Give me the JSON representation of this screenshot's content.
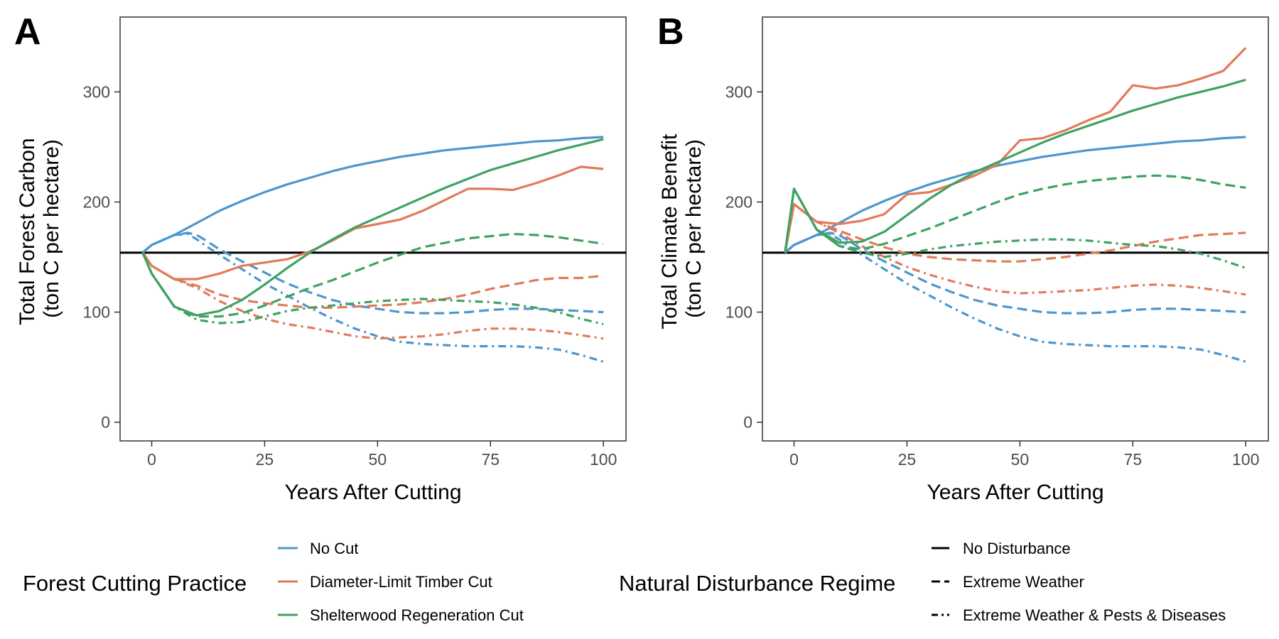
{
  "chart_data": [
    {
      "type": "line",
      "panel_label": "A",
      "xlabel": "Years After Cutting",
      "ylabel": [
        "Total Forest Carbon",
        "(ton C per hectare)"
      ],
      "xlim": [
        -7,
        105
      ],
      "ylim": [
        -17,
        368
      ],
      "xticks": [
        0,
        25,
        50,
        75,
        100
      ],
      "yticks": [
        0,
        100,
        200,
        300
      ],
      "grid": false,
      "reference_line": 154,
      "series": [
        {
          "practice": "No Cut",
          "regime": "No Disturbance",
          "color": "#4e96cd",
          "x": [
            -2,
            0,
            5,
            10,
            15,
            20,
            25,
            30,
            35,
            40,
            45,
            50,
            55,
            60,
            65,
            70,
            75,
            80,
            85,
            90,
            95,
            100
          ],
          "y": [
            154,
            161,
            170,
            181,
            192,
            201,
            209,
            216,
            222,
            228,
            233,
            237,
            241,
            244,
            247,
            249,
            251,
            253,
            255,
            256,
            258,
            259
          ]
        },
        {
          "practice": "No Cut",
          "regime": "Extreme Weather",
          "color": "#4e96cd",
          "x": [
            -2,
            0,
            5,
            8,
            10,
            12,
            15,
            20,
            25,
            30,
            35,
            40,
            45,
            50,
            55,
            60,
            65,
            70,
            75,
            80,
            85,
            90,
            95,
            100
          ],
          "y": [
            154,
            161,
            170,
            172,
            170,
            165,
            157,
            146,
            136,
            126,
            118,
            111,
            106,
            103,
            100,
            99,
            99,
            100,
            102,
            103,
            103,
            102,
            101,
            100
          ]
        },
        {
          "practice": "No Cut",
          "regime": "Extreme Weather & Pests & Diseases",
          "color": "#4e96cd",
          "x": [
            -2,
            0,
            5,
            8,
            10,
            12,
            15,
            20,
            25,
            30,
            35,
            40,
            45,
            50,
            55,
            60,
            65,
            70,
            75,
            80,
            85,
            90,
            95,
            100
          ],
          "y": [
            154,
            161,
            170,
            171,
            166,
            160,
            152,
            139,
            126,
            115,
            104,
            94,
            85,
            78,
            73,
            71,
            70,
            69,
            69,
            69,
            68,
            66,
            61,
            55
          ]
        },
        {
          "practice": "Diameter-Limit Timber Cut",
          "regime": "No Disturbance",
          "color": "#e07b5a",
          "x": [
            -2,
            0,
            5,
            10,
            15,
            20,
            25,
            30,
            35,
            40,
            45,
            50,
            55,
            60,
            65,
            70,
            75,
            80,
            85,
            90,
            95,
            100
          ],
          "y": [
            154,
            142,
            130,
            130,
            135,
            142,
            145,
            148,
            155,
            165,
            176,
            180,
            184,
            192,
            202,
            212,
            212,
            211,
            217,
            224,
            232,
            230
          ]
        },
        {
          "practice": "Diameter-Limit Timber Cut",
          "regime": "Extreme Weather",
          "color": "#e07b5a",
          "x": [
            -2,
            0,
            5,
            10,
            15,
            20,
            25,
            30,
            35,
            40,
            45,
            50,
            55,
            60,
            65,
            70,
            75,
            80,
            85,
            90,
            95,
            100
          ],
          "y": [
            154,
            142,
            130,
            124,
            116,
            111,
            108,
            106,
            104,
            104,
            105,
            106,
            107,
            109,
            112,
            116,
            121,
            125,
            129,
            131,
            131,
            133
          ]
        },
        {
          "practice": "Diameter-Limit Timber Cut",
          "regime": "Extreme Weather & Pests & Diseases",
          "color": "#e07b5a",
          "x": [
            -2,
            0,
            5,
            10,
            15,
            20,
            25,
            30,
            35,
            40,
            45,
            50,
            55,
            60,
            65,
            70,
            75,
            80,
            85,
            90,
            95,
            100
          ],
          "y": [
            154,
            142,
            130,
            122,
            110,
            101,
            94,
            89,
            86,
            82,
            78,
            76,
            77,
            78,
            80,
            83,
            85,
            85,
            84,
            82,
            79,
            76
          ]
        },
        {
          "practice": "Shelterwood Regeneration Cut",
          "regime": "No Disturbance",
          "color": "#3fa262",
          "x": [
            -2,
            0,
            5,
            10,
            15,
            20,
            25,
            30,
            35,
            40,
            45,
            50,
            55,
            60,
            65,
            70,
            75,
            80,
            85,
            90,
            95,
            100
          ],
          "y": [
            154,
            135,
            105,
            97,
            101,
            111,
            125,
            140,
            154,
            166,
            177,
            186,
            195,
            204,
            213,
            221,
            229,
            235,
            241,
            247,
            252,
            257
          ]
        },
        {
          "practice": "Shelterwood Regeneration Cut",
          "regime": "Extreme Weather",
          "color": "#3fa262",
          "x": [
            -2,
            0,
            5,
            10,
            15,
            20,
            25,
            30,
            35,
            40,
            45,
            50,
            55,
            60,
            65,
            70,
            75,
            80,
            85,
            90,
            95,
            100
          ],
          "y": [
            154,
            135,
            105,
            96,
            96,
            99,
            106,
            114,
            122,
            129,
            137,
            145,
            152,
            159,
            163,
            167,
            169,
            171,
            170,
            168,
            165,
            162
          ]
        },
        {
          "practice": "Shelterwood Regeneration Cut",
          "regime": "Extreme Weather & Pests & Diseases",
          "color": "#3fa262",
          "x": [
            -2,
            0,
            5,
            10,
            15,
            20,
            25,
            30,
            35,
            40,
            45,
            50,
            55,
            60,
            65,
            70,
            75,
            80,
            85,
            90,
            95,
            100
          ],
          "y": [
            154,
            135,
            105,
            93,
            90,
            91,
            96,
            101,
            104,
            106,
            108,
            110,
            111,
            112,
            111,
            110,
            109,
            107,
            104,
            100,
            94,
            89
          ]
        }
      ]
    },
    {
      "type": "line",
      "panel_label": "B",
      "xlabel": "Years After Cutting",
      "ylabel": [
        "Total Climate Benefit",
        "(ton C per hectare)"
      ],
      "xlim": [
        -7,
        105
      ],
      "ylim": [
        -17,
        368
      ],
      "xticks": [
        0,
        25,
        50,
        75,
        100
      ],
      "yticks": [
        0,
        100,
        200,
        300
      ],
      "grid": false,
      "reference_line": 154,
      "series": [
        {
          "practice": "No Cut",
          "regime": "No Disturbance",
          "color": "#4e96cd",
          "x": [
            -2,
            0,
            5,
            10,
            15,
            20,
            25,
            30,
            35,
            40,
            45,
            50,
            55,
            60,
            65,
            70,
            75,
            80,
            85,
            90,
            95,
            100
          ],
          "y": [
            154,
            161,
            170,
            181,
            192,
            201,
            209,
            216,
            222,
            228,
            233,
            237,
            241,
            244,
            247,
            249,
            251,
            253,
            255,
            256,
            258,
            259
          ]
        },
        {
          "practice": "No Cut",
          "regime": "Extreme Weather",
          "color": "#4e96cd",
          "x": [
            -2,
            0,
            5,
            8,
            10,
            12,
            15,
            20,
            25,
            30,
            35,
            40,
            45,
            50,
            55,
            60,
            65,
            70,
            75,
            80,
            85,
            90,
            95,
            100
          ],
          "y": [
            154,
            161,
            170,
            172,
            170,
            165,
            157,
            146,
            136,
            126,
            118,
            111,
            106,
            103,
            100,
            99,
            99,
            100,
            102,
            103,
            103,
            102,
            101,
            100
          ]
        },
        {
          "practice": "No Cut",
          "regime": "Extreme Weather & Pests & Diseases",
          "color": "#4e96cd",
          "x": [
            -2,
            0,
            5,
            8,
            10,
            12,
            15,
            20,
            25,
            30,
            35,
            40,
            45,
            50,
            55,
            60,
            65,
            70,
            75,
            80,
            85,
            90,
            95,
            100
          ],
          "y": [
            154,
            161,
            170,
            171,
            166,
            160,
            152,
            139,
            126,
            115,
            104,
            94,
            85,
            78,
            73,
            71,
            70,
            69,
            69,
            69,
            68,
            66,
            61,
            55
          ]
        },
        {
          "practice": "Diameter-Limit Timber Cut",
          "regime": "No Disturbance",
          "color": "#e07b5a",
          "x": [
            -2,
            0,
            5,
            10,
            15,
            20,
            25,
            30,
            35,
            40,
            45,
            50,
            55,
            60,
            65,
            70,
            75,
            80,
            85,
            90,
            95,
            100
          ],
          "y": [
            154,
            198,
            182,
            180,
            183,
            189,
            207,
            209,
            216,
            224,
            234,
            256,
            258,
            265,
            274,
            282,
            306,
            303,
            306,
            312,
            319,
            340
          ]
        },
        {
          "practice": "Diameter-Limit Timber Cut",
          "regime": "Extreme Weather",
          "color": "#e07b5a",
          "x": [
            -2,
            0,
            5,
            10,
            15,
            20,
            25,
            30,
            35,
            40,
            45,
            50,
            55,
            60,
            65,
            70,
            75,
            80,
            85,
            90,
            95,
            100
          ],
          "y": [
            154,
            198,
            182,
            174,
            166,
            159,
            153,
            150,
            148,
            147,
            146,
            146,
            148,
            150,
            153,
            156,
            160,
            164,
            167,
            170,
            171,
            172
          ]
        },
        {
          "practice": "Diameter-Limit Timber Cut",
          "regime": "Extreme Weather & Pests & Diseases",
          "color": "#e07b5a",
          "x": [
            -2,
            0,
            5,
            10,
            15,
            20,
            25,
            30,
            35,
            40,
            45,
            50,
            55,
            60,
            65,
            70,
            75,
            80,
            85,
            90,
            95,
            100
          ],
          "y": [
            154,
            198,
            182,
            172,
            160,
            150,
            141,
            134,
            128,
            123,
            119,
            117,
            118,
            119,
            120,
            122,
            124,
            125,
            124,
            122,
            119,
            116
          ]
        },
        {
          "practice": "Shelterwood Regeneration Cut",
          "regime": "No Disturbance",
          "color": "#3fa262",
          "x": [
            -2,
            0,
            5,
            10,
            15,
            20,
            25,
            30,
            35,
            40,
            45,
            50,
            55,
            60,
            65,
            70,
            75,
            80,
            85,
            90,
            95,
            100
          ],
          "y": [
            154,
            212,
            175,
            163,
            164,
            173,
            188,
            203,
            216,
            227,
            236,
            245,
            254,
            262,
            269,
            276,
            283,
            289,
            295,
            300,
            305,
            311
          ]
        },
        {
          "practice": "Shelterwood Regeneration Cut",
          "regime": "Extreme Weather",
          "color": "#3fa262",
          "x": [
            -2,
            0,
            5,
            10,
            15,
            20,
            25,
            30,
            35,
            40,
            45,
            50,
            55,
            60,
            65,
            70,
            75,
            80,
            85,
            90,
            95,
            100
          ],
          "y": [
            154,
            212,
            175,
            160,
            157,
            162,
            169,
            176,
            184,
            192,
            200,
            207,
            212,
            216,
            219,
            221,
            223,
            224,
            223,
            220,
            216,
            213
          ]
        },
        {
          "practice": "Shelterwood Regeneration Cut",
          "regime": "Extreme Weather & Pests & Diseases",
          "color": "#3fa262",
          "x": [
            -2,
            0,
            5,
            10,
            15,
            20,
            25,
            30,
            35,
            40,
            45,
            50,
            55,
            60,
            65,
            70,
            75,
            80,
            85,
            90,
            95,
            100
          ],
          "y": [
            154,
            212,
            175,
            160,
            154,
            150,
            153,
            157,
            160,
            162,
            164,
            165,
            166,
            166,
            165,
            163,
            161,
            160,
            157,
            153,
            147,
            140
          ]
        }
      ]
    }
  ],
  "legend": {
    "practice": {
      "title": "Forest Cutting Practice",
      "items": [
        {
          "label": "No Cut",
          "color": "#4e96cd"
        },
        {
          "label": "Diameter-Limit Timber Cut",
          "color": "#e07b5a"
        },
        {
          "label": "Shelterwood Regeneration Cut",
          "color": "#3fa262"
        }
      ]
    },
    "regime": {
      "title": "Natural Disturbance Regime",
      "items": [
        {
          "label": "No Disturbance",
          "linetype": "solid"
        },
        {
          "label": "Extreme Weather",
          "linetype": "dashed"
        },
        {
          "label": "Extreme Weather & Pests & Diseases",
          "linetype": "dotdash"
        }
      ]
    }
  }
}
